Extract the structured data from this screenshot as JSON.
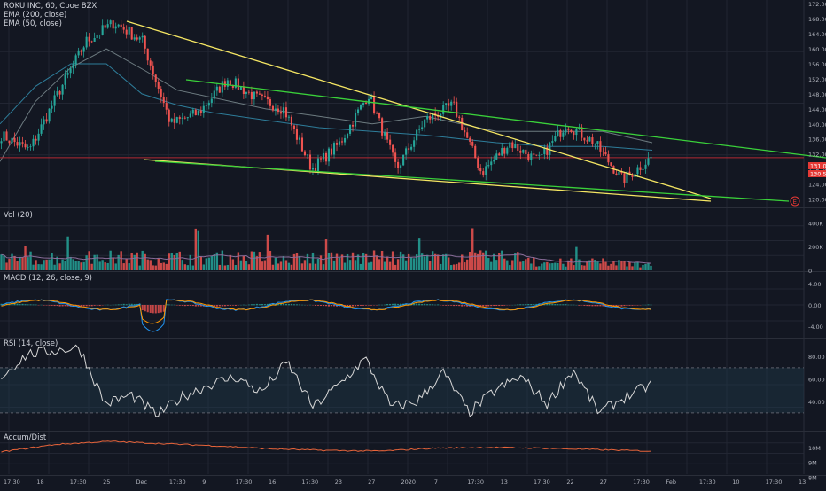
{
  "colors": {
    "bg": "#131722",
    "grid": "#222633",
    "sep": "#2a2e39",
    "text": "#d1d4dc",
    "axis_text": "#b2b5be",
    "up": "#26a69a",
    "down": "#ef5350",
    "ema200": "#2e7d9a",
    "ema50": "#6d7b80",
    "trend_yellow": "#f5e663",
    "trend_green": "#3ad13a",
    "price_line": "#b22833",
    "macd_line": "#2196f3",
    "signal_line": "#ff9800",
    "rsi_line": "#d6d6d6",
    "rsi_band": "#1f3a4a",
    "accum_line": "#e8643a",
    "vol_ma": "#8a6d9a",
    "price_label_red": "#e53935"
  },
  "header": {
    "price_title": "ROKU INC, 60, Cboe BZX",
    "ema200_label": "EMA (200, close)",
    "ema50_label": "EMA (50, close)",
    "vol_title": "Vol (20)",
    "macd_title": "MACD (12, 26, close, 9)",
    "rsi_title": "RSI (14, close)",
    "accum_title": "Accum/Dist"
  },
  "price_labels": {
    "current": "131.00",
    "second": "130.55"
  },
  "event_marker": "E",
  "chart_data": [
    {
      "type": "candlestick",
      "panel": "price",
      "ylim": [
        118,
        173
      ],
      "y_ticks": [
        "172.00",
        "168.00",
        "164.00",
        "160.00",
        "156.00",
        "152.00",
        "148.00",
        "144.00",
        "140.00",
        "136.00",
        "132.00",
        "128.00",
        "124.00",
        "120.00"
      ],
      "key_prices": [
        137,
        133,
        148,
        162,
        167,
        162,
        140,
        143,
        152,
        147,
        144,
        128,
        135,
        148,
        128,
        141,
        145,
        127,
        135,
        130,
        140,
        135,
        125,
        131
      ],
      "ema200_anchor": [
        [
          0,
          140
        ],
        [
          40,
          150
        ],
        [
          80,
          156
        ],
        [
          120,
          156
        ],
        [
          160,
          148
        ],
        [
          200,
          145
        ],
        [
          240,
          143
        ],
        [
          300,
          141
        ],
        [
          360,
          139
        ],
        [
          420,
          138
        ],
        [
          480,
          137
        ],
        [
          520,
          136
        ],
        [
          560,
          135
        ],
        [
          620,
          134
        ],
        [
          680,
          134
        ],
        [
          736,
          133
        ]
      ],
      "ema50_anchor": [
        [
          0,
          130
        ],
        [
          40,
          146
        ],
        [
          80,
          155
        ],
        [
          120,
          160
        ],
        [
          165,
          154
        ],
        [
          200,
          149
        ],
        [
          240,
          147
        ],
        [
          300,
          144
        ],
        [
          360,
          142
        ],
        [
          420,
          140
        ],
        [
          480,
          142
        ],
        [
          520,
          140
        ],
        [
          560,
          138
        ],
        [
          620,
          138
        ],
        [
          680,
          138
        ],
        [
          736,
          135
        ]
      ]
    },
    {
      "type": "bar",
      "panel": "volume",
      "ylim": [
        0,
        500000
      ],
      "y_ticks": [
        "400K",
        "200K",
        "0"
      ]
    },
    {
      "type": "histogram",
      "panel": "macd",
      "ylim": [
        -6,
        6
      ],
      "y_ticks": [
        "4.00",
        "0.00",
        "-4.00"
      ]
    },
    {
      "type": "line",
      "panel": "rsi",
      "ylim": [
        15,
        95
      ],
      "y_ticks": [
        "80.00",
        "60.00",
        "40.00"
      ],
      "band": [
        30,
        70
      ],
      "key_values": [
        62,
        82,
        85,
        88,
        38,
        46,
        28,
        45,
        55,
        62,
        48,
        75,
        35,
        55,
        78,
        35,
        40,
        66,
        30,
        50,
        62,
        38,
        68,
        30,
        44,
        55
      ]
    },
    {
      "type": "line",
      "panel": "accum",
      "ylim": [
        8200000,
        11000000
      ],
      "y_ticks": [
        "10M",
        "9M",
        "8M"
      ]
    },
    {
      "type": "time_axis",
      "x_labels": [
        "17:30",
        "18",
        "17:30",
        "25",
        "Dec",
        "17:30",
        "9",
        "17:30",
        "16",
        "17:30",
        "23",
        "27",
        "2020",
        "7",
        "17:30",
        "13",
        "17:30",
        "22",
        "27",
        "17:30",
        "Feb",
        "17:30",
        "10",
        "17:30",
        "13"
      ]
    }
  ]
}
